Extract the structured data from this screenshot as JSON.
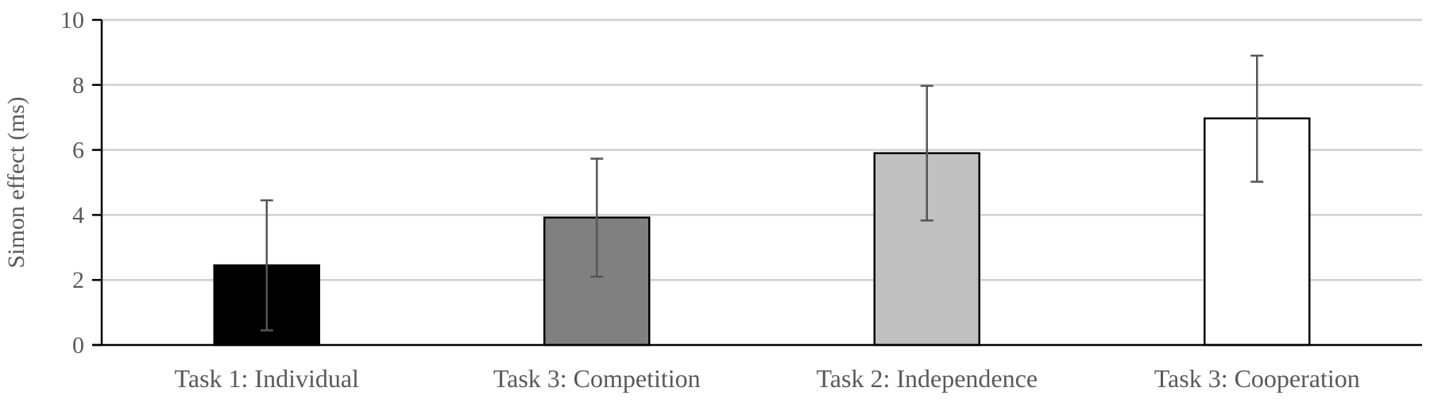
{
  "chart_data": {
    "type": "bar",
    "title": "",
    "xlabel": "",
    "ylabel": "Simon effect (ms)",
    "ylim": [
      0,
      10
    ],
    "yticks": [
      0,
      2,
      4,
      6,
      8,
      10
    ],
    "grid": true,
    "legend": "none",
    "categories": [
      "Task 1: Individual",
      "Task 3: Competition",
      "Task 2: Independence",
      "Task 3: Cooperation"
    ],
    "series": [
      {
        "values": [
          2.45,
          3.92,
          5.9,
          6.97
        ],
        "error_low": [
          0.45,
          2.1,
          3.83,
          5.02
        ],
        "error_high": [
          4.45,
          5.73,
          7.97,
          8.9
        ],
        "colors": [
          "#000000",
          "#808080",
          "#c0c0c0",
          "#ffffff"
        ]
      }
    ]
  }
}
